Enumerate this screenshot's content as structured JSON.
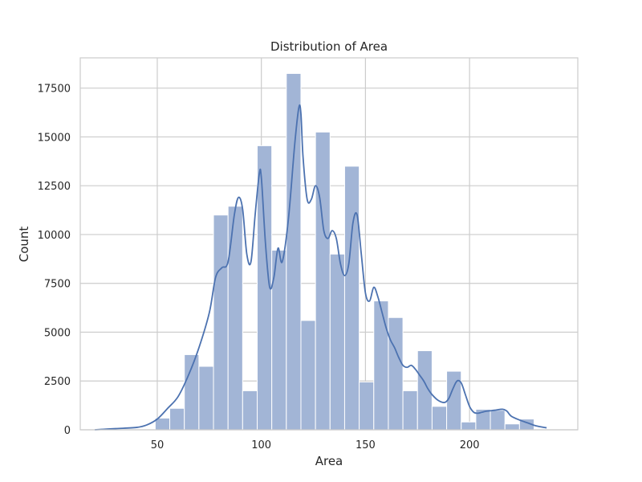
{
  "chart_data": {
    "type": "bar",
    "title": "Distribution of Area",
    "xlabel": "Area",
    "ylabel": "Count",
    "xlim": [
      13,
      252
    ],
    "ylim": [
      0,
      19050
    ],
    "grid": true,
    "bin_edges": [
      49,
      56,
      63,
      70,
      77,
      84,
      91,
      98,
      105,
      112,
      119,
      126,
      133,
      140,
      147,
      154,
      161,
      168,
      175,
      182,
      189,
      196,
      203,
      210,
      217,
      224,
      231,
      238
    ],
    "values": [
      600,
      1100,
      3850,
      3250,
      11000,
      11450,
      2000,
      14550,
      9200,
      18250,
      5600,
      15250,
      9000,
      13500,
      2450,
      6600,
      5750,
      2000,
      4050,
      1200,
      3000,
      400,
      1050,
      1000,
      300,
      550,
      0
    ],
    "kde": {
      "x": [
        20,
        30,
        40,
        45,
        50,
        55,
        60,
        65,
        70,
        75,
        78,
        81,
        84,
        87,
        89,
        91,
        93,
        95,
        97,
        99,
        100,
        102,
        104,
        106,
        108,
        110,
        113,
        116,
        118,
        119,
        120,
        122,
        124,
        126,
        128,
        130,
        132,
        134,
        136,
        138,
        140,
        142,
        144,
        146,
        148,
        150,
        152,
        154,
        156,
        158,
        160,
        162,
        164,
        166,
        168,
        170,
        172,
        174,
        176,
        178,
        180,
        182,
        185,
        188,
        190,
        192,
        194,
        196,
        198,
        200,
        202,
        204,
        206,
        208,
        212,
        216,
        218,
        220,
        224,
        228,
        232,
        237
      ],
      "y": [
        0,
        60,
        120,
        250,
        550,
        1100,
        1700,
        2800,
        4200,
        6000,
        7800,
        8300,
        8600,
        11000,
        11900,
        11300,
        9000,
        8600,
        11000,
        13100,
        12900,
        9500,
        7300,
        7800,
        9300,
        8600,
        10800,
        14600,
        16500,
        16200,
        14000,
        11800,
        11800,
        12500,
        11900,
        10200,
        9800,
        10200,
        9800,
        8500,
        7900,
        8500,
        10600,
        11000,
        9000,
        7000,
        6600,
        7300,
        6800,
        6000,
        5200,
        4600,
        4200,
        3700,
        3300,
        3200,
        3300,
        3100,
        2800,
        2500,
        2100,
        1800,
        1500,
        1400,
        1600,
        2100,
        2500,
        2400,
        1800,
        1200,
        900,
        850,
        900,
        950,
        1000,
        1050,
        950,
        700,
        500,
        350,
        200,
        100
      ]
    },
    "xticks": [
      50,
      100,
      150,
      200
    ],
    "xtick_labels": [
      "50",
      "100",
      "150",
      "200"
    ],
    "yticks": [
      0,
      2500,
      5000,
      7500,
      10000,
      12500,
      15000,
      17500
    ],
    "ytick_labels": [
      "0",
      "2500",
      "5000",
      "7500",
      "10000",
      "12500",
      "15000",
      "17500"
    ],
    "colors": {
      "bar_fill": "#a2b5d6",
      "bar_edge": "#ffffff",
      "kde_line": "#4c72b0",
      "grid": "#cccccc",
      "frame": "#cccccc"
    }
  }
}
